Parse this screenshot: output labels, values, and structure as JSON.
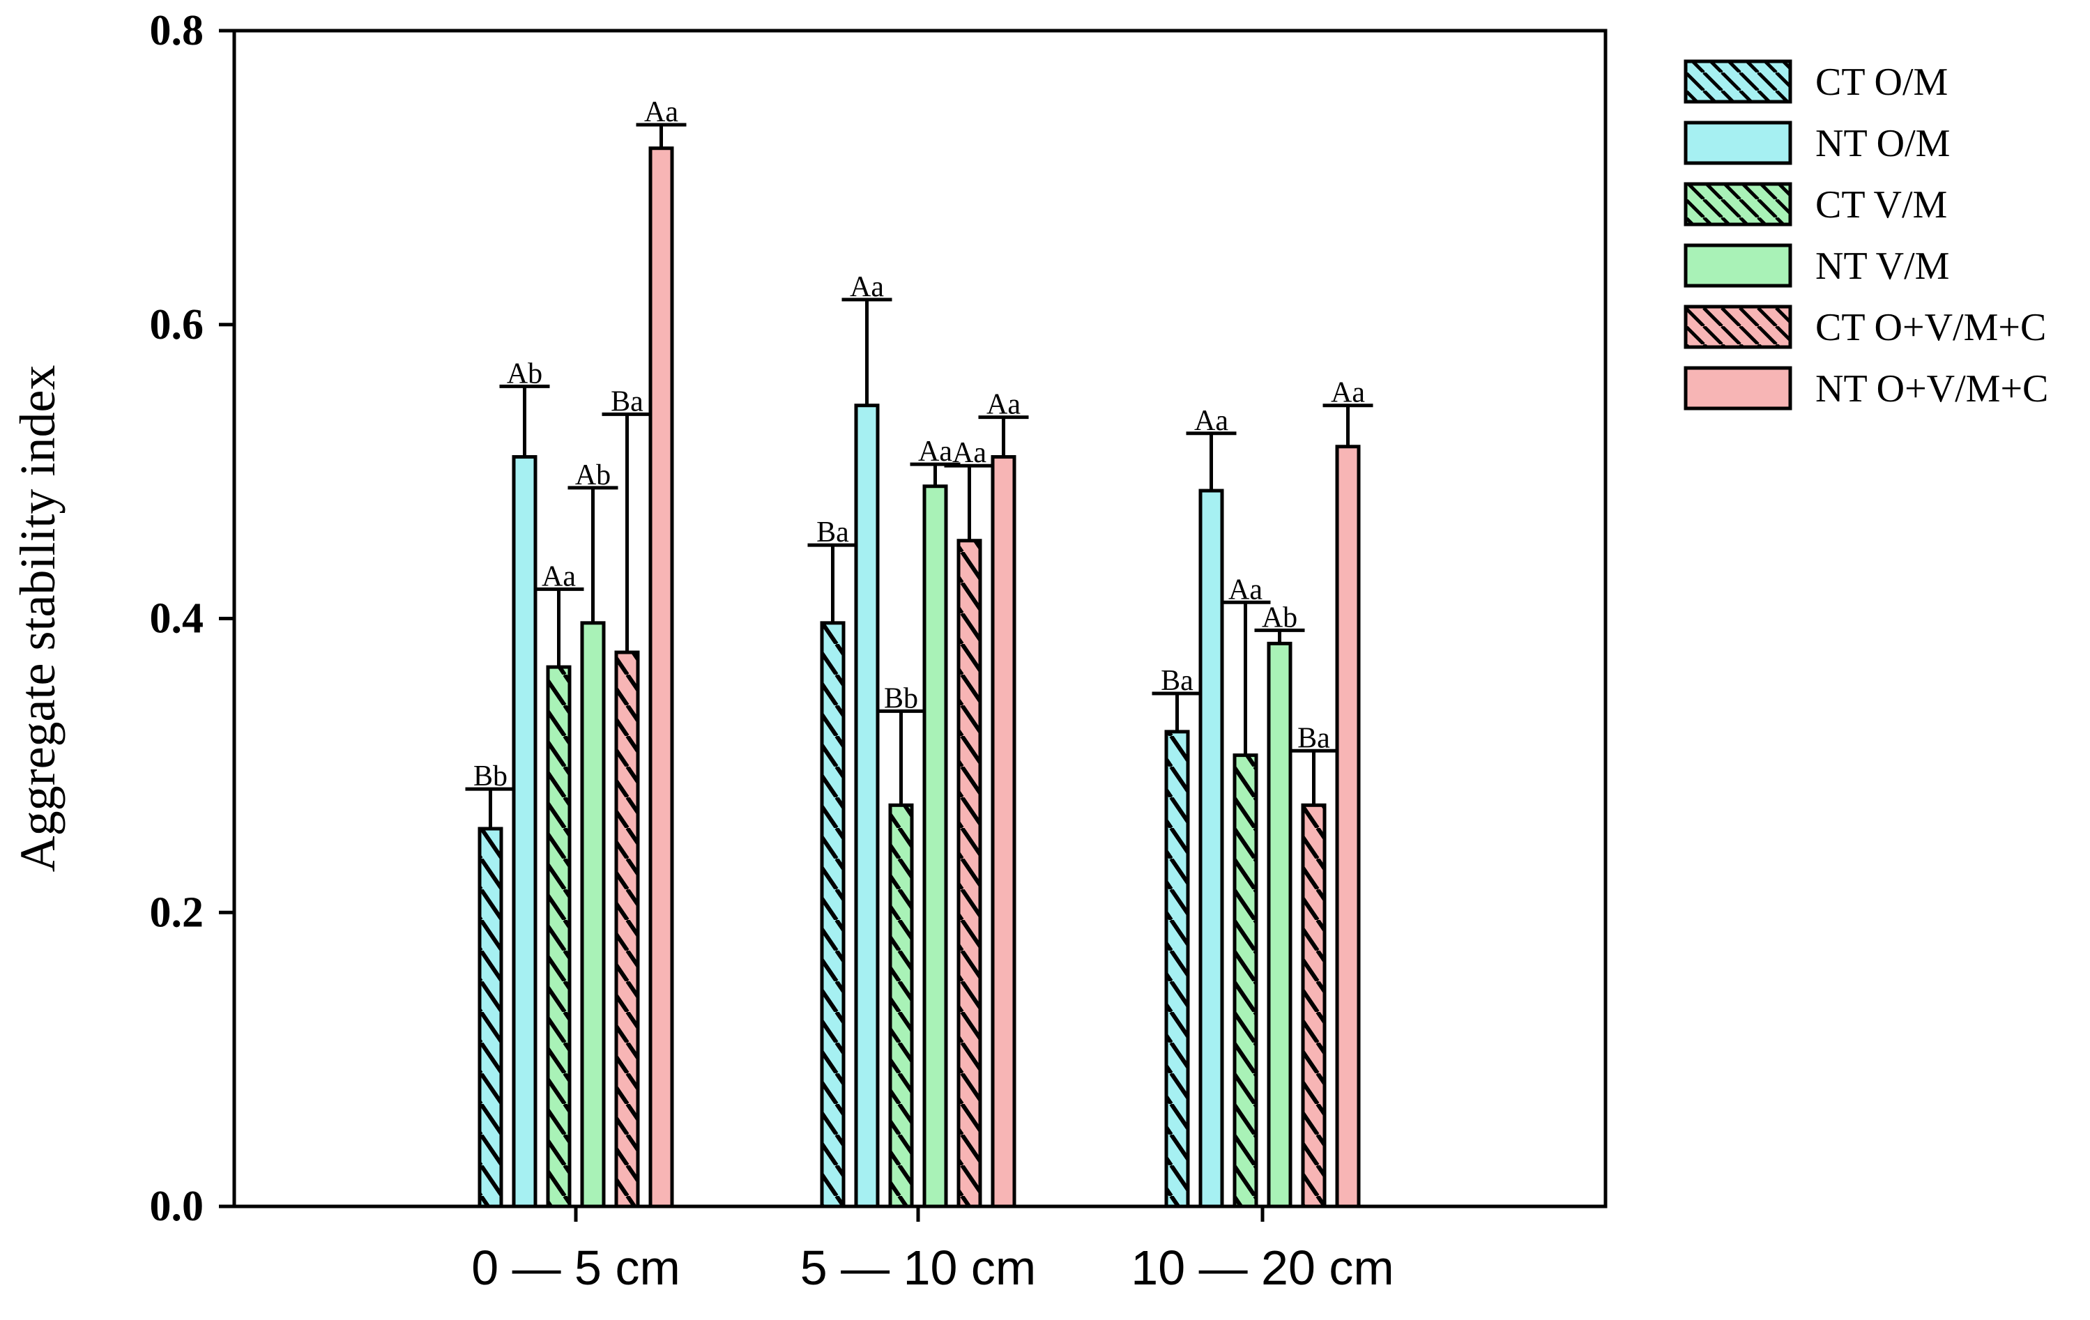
{
  "chart_data": {
    "type": "bar",
    "title": "",
    "xlabel": "",
    "ylabel": "Aggregate stability index",
    "ylim": [
      0.0,
      0.8
    ],
    "yticks": [
      "0.0",
      "0.2",
      "0.4",
      "0.6",
      "0.8"
    ],
    "ytick_values": [
      0.0,
      0.2,
      0.4,
      0.6,
      0.8
    ],
    "grid": false,
    "legend_position": "right",
    "categories": [
      "0 — 5 cm",
      "5 — 10 cm",
      "10 — 20 cm"
    ],
    "series": [
      {
        "name": "CT O/M",
        "color": "#a6f0f2",
        "hatched": true,
        "values": [
          0.257,
          0.397,
          0.323
        ],
        "errors": [
          0.027,
          0.053,
          0.026
        ],
        "letters": [
          "Bb",
          "Ba",
          "Ba"
        ]
      },
      {
        "name": "NT O/M",
        "color": "#a6f0f2",
        "hatched": false,
        "values": [
          0.51,
          0.545,
          0.487
        ],
        "errors": [
          0.048,
          0.072,
          0.039
        ],
        "letters": [
          "Ab",
          "Aa",
          "Aa"
        ]
      },
      {
        "name": "CT V/M",
        "color": "#a9f2b7",
        "hatched": true,
        "values": [
          0.367,
          0.273,
          0.307
        ],
        "errors": [
          0.053,
          0.064,
          0.104
        ],
        "letters": [
          "Aa",
          "Bb",
          "Aa"
        ]
      },
      {
        "name": "NT V/M",
        "color": "#a9f2b7",
        "hatched": false,
        "values": [
          0.397,
          0.49,
          0.383
        ],
        "errors": [
          0.092,
          0.015,
          0.009
        ],
        "letters": [
          "Ab",
          "Aa",
          "Ab"
        ]
      },
      {
        "name": "CT O+V/M+C",
        "color": "#f7b5b5",
        "hatched": true,
        "values": [
          0.377,
          0.453,
          0.273
        ],
        "errors": [
          0.162,
          0.051,
          0.037
        ],
        "letters": [
          "Ba",
          "Aa",
          "Ba"
        ]
      },
      {
        "name": "NT O+V/M+C",
        "color": "#f7b5b5",
        "hatched": false,
        "values": [
          0.72,
          0.51,
          0.517
        ],
        "errors": [
          0.016,
          0.027,
          0.028
        ],
        "letters": [
          "Aa",
          "Aa",
          "Aa"
        ]
      }
    ]
  }
}
